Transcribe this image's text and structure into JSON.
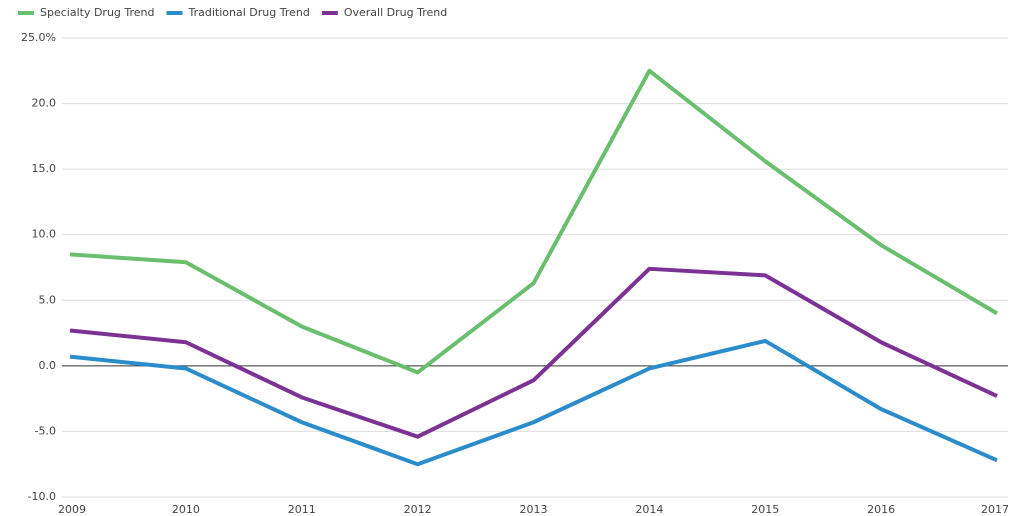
{
  "chart_data": {
    "type": "line",
    "categories": [
      "2009",
      "2010",
      "2011",
      "2012",
      "2013",
      "2014",
      "2015",
      "2016",
      "2017"
    ],
    "series": [
      {
        "name": "Specialty Drug Trend",
        "color": "#6abf6f",
        "values": [
          8.5,
          7.9,
          3.0,
          -0.5,
          6.3,
          22.5,
          15.6,
          9.2,
          4.0
        ]
      },
      {
        "name": "Traditional Drug Trend",
        "color": "#2b8ccc",
        "values": [
          0.7,
          -0.2,
          -4.3,
          -7.5,
          -4.3,
          -0.2,
          1.9,
          -3.3,
          -7.2
        ]
      },
      {
        "name": "Overall Drug Trend",
        "color": "#7b3294",
        "values": [
          2.7,
          1.8,
          -2.4,
          -5.4,
          -1.1,
          7.4,
          6.9,
          1.8,
          -2.3
        ]
      }
    ],
    "ylim": [
      -10,
      25
    ],
    "yticks": [
      {
        "value": -10,
        "label": "-10.0"
      },
      {
        "value": -5,
        "label": "-5.0"
      },
      {
        "value": 0,
        "label": "0.0"
      },
      {
        "value": 5,
        "label": "5.0"
      },
      {
        "value": 10,
        "label": "10.0"
      },
      {
        "value": 15,
        "label": "15.0"
      },
      {
        "value": 20,
        "label": "20.0"
      },
      {
        "value": 25,
        "label": "25.0%"
      }
    ],
    "grid": true,
    "legend": "top-left"
  }
}
